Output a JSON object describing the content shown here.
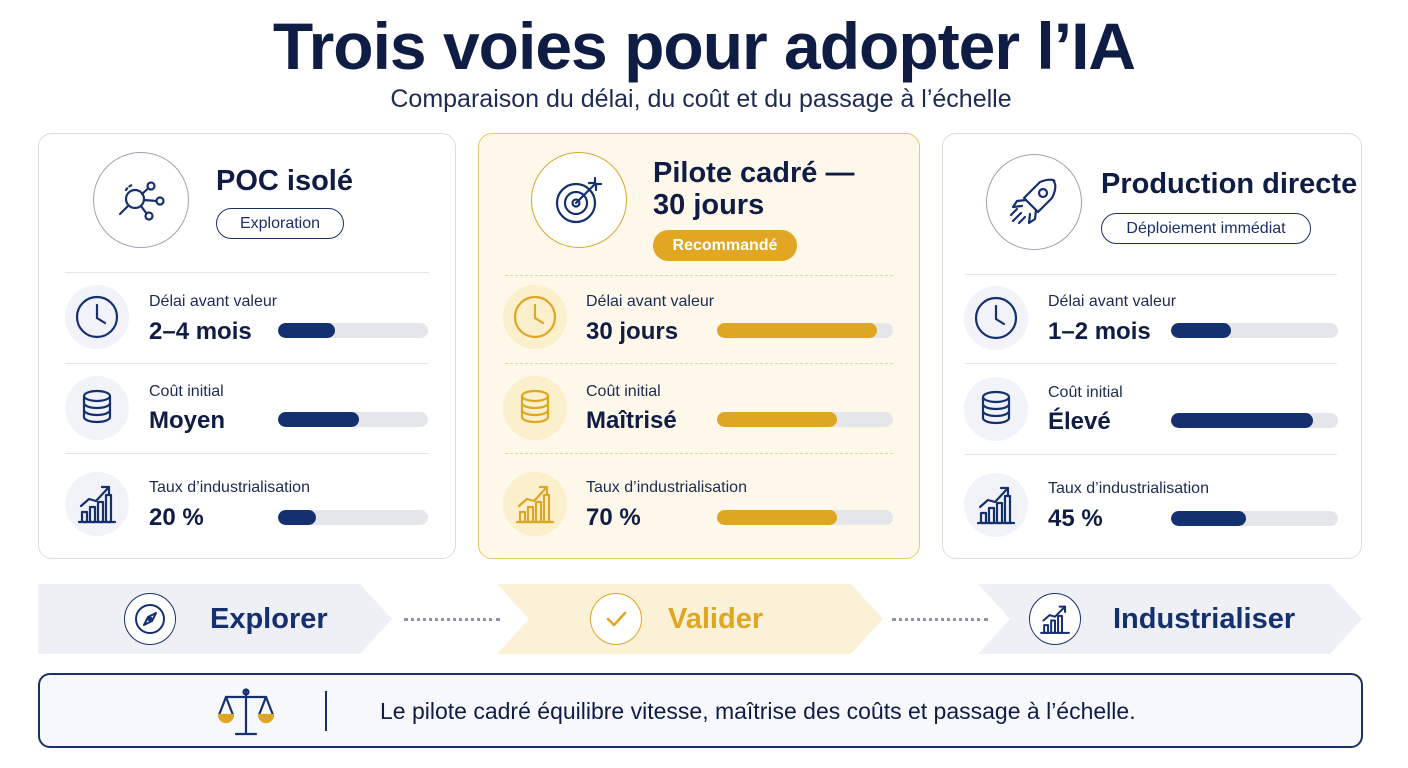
{
  "header": {
    "title": "Trois voies pour adopter l’IA",
    "subtitle": "Comparaison du délai, du coût et du passage à l’échelle"
  },
  "colors": {
    "navy": "#15306f",
    "gold": "#dda623",
    "gold_bg": "#fdf8ea",
    "track": "#e4e6ea"
  },
  "cards": [
    {
      "title": "POC isolé",
      "badge": "Exploration",
      "icon": "magnifier-network-icon",
      "metrics": [
        {
          "label": "Délai avant valeur",
          "value": "2–4 mois",
          "level": 0.38,
          "icon": "clock-icon"
        },
        {
          "label": "Coût initial",
          "value": "Moyen",
          "level": 0.54,
          "icon": "coins-icon"
        },
        {
          "label": "Taux d’industrialisation",
          "value": "20 %",
          "level": 0.25,
          "icon": "growth-chart-icon"
        }
      ]
    },
    {
      "title": "Pilote cadré —",
      "title_line2": "30 jours",
      "badge": "Recommandé",
      "icon": "target-icon",
      "metrics": [
        {
          "label": "Délai avant valeur",
          "value": "30 jours",
          "level": 0.91,
          "icon": "clock-icon"
        },
        {
          "label": "Coût initial",
          "value": "Maîtrisé",
          "level": 0.68,
          "icon": "coins-icon"
        },
        {
          "label": "Taux d’industrialisation",
          "value": "70 %",
          "level": 0.68,
          "icon": "growth-chart-icon"
        }
      ]
    },
    {
      "title": "Production directe",
      "badge": "Déploiement immédiat",
      "icon": "rocket-icon",
      "metrics": [
        {
          "label": "Délai avant valeur",
          "value": "1–2 mois",
          "level": 0.36,
          "icon": "clock-icon"
        },
        {
          "label": "Coût initial",
          "value": "Élevé",
          "level": 0.85,
          "icon": "coins-icon"
        },
        {
          "label": "Taux d’industrialisation",
          "value": "45 %",
          "level": 0.45,
          "icon": "growth-chart-icon"
        }
      ]
    }
  ],
  "steps": [
    {
      "label": "Explorer",
      "icon": "compass-icon"
    },
    {
      "label": "Valider",
      "icon": "check-icon"
    },
    {
      "label": "Industrialiser",
      "icon": "growth-chart-icon"
    }
  ],
  "summary": {
    "text": "Le pilote cadré équilibre vitesse, maîtrise des coûts et passage à l’échelle.",
    "icon": "balance-scale-icon"
  }
}
